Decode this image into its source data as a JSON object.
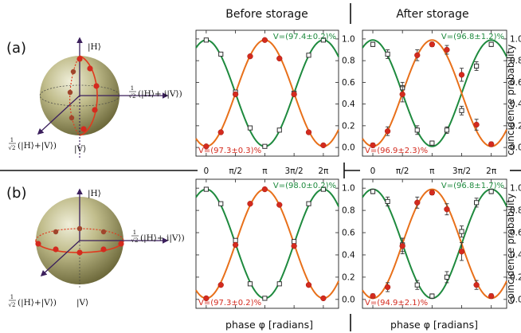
{
  "headers": {
    "left": "Before storage",
    "right": "After storage"
  },
  "xlabel": "phase φ [radians]",
  "ylabel": "coincidence probability",
  "x_ticks": [
    "0",
    "π/2",
    "π",
    "3π/2",
    "2π"
  ],
  "y_ticks": [
    "0.0",
    "0.2",
    "0.4",
    "0.6",
    "0.8",
    "1.0"
  ],
  "colors": {
    "green": "#1e8a3e",
    "orange": "#e8701a",
    "red": "#d42a1e"
  },
  "rows": [
    {
      "label": "(a)",
      "bloch": {
        "top": "|H⟩",
        "bottom": "|V⟩",
        "eq_front_frac": "1",
        "eq_front_den": "√2",
        "eq_front_rest": "(|H⟩+|V⟩)",
        "eq_side_frac": "1",
        "eq_side_den": "√2",
        "eq_side_rest": "(|H⟩+ i|V⟩)"
      }
    },
    {
      "label": "(b)",
      "bloch": {
        "top": "|H⟩",
        "bottom": "|V⟩",
        "eq_front_frac": "1",
        "eq_front_den": "√2",
        "eq_front_rest": "(|H⟩+|V⟩)",
        "eq_side_frac": "1",
        "eq_side_den": "√2",
        "eq_side_rest": "(|H⟩+ i|V⟩)"
      }
    }
  ],
  "chart_data": [
    {
      "id": "a-before",
      "type": "scatter",
      "title": "",
      "xlabel": "",
      "ylabel": "coincidence probability",
      "xlim": [
        -0.55,
        7.1
      ],
      "ylim": [
        -0.08,
        1.08
      ],
      "grid": false,
      "series": [
        {
          "color": "green",
          "marker": "open-square",
          "curve": "cos2",
          "x": [
            0,
            0.785,
            1.571,
            2.356,
            3.142,
            3.927,
            4.712,
            5.498,
            6.283
          ],
          "y": [
            0.99,
            0.86,
            0.51,
            0.18,
            0.01,
            0.16,
            0.5,
            0.85,
            0.99
          ],
          "err": [
            0,
            0,
            0,
            0,
            0,
            0,
            0,
            0,
            0
          ]
        },
        {
          "color": "red",
          "marker": "filled-circle",
          "curve": "sin2",
          "x": [
            0,
            0.785,
            1.571,
            2.356,
            3.142,
            3.927,
            4.712,
            5.498,
            6.283
          ],
          "y": [
            0.01,
            0.14,
            0.49,
            0.84,
            0.99,
            0.82,
            0.49,
            0.14,
            0.02
          ],
          "err": [
            0,
            0,
            0,
            0,
            0,
            0,
            0,
            0,
            0
          ]
        }
      ],
      "annotations": [
        {
          "text": "V=(97.4±0.2)%",
          "color": "green"
        },
        {
          "text": "V=(97.3±0.3)%",
          "color": "red"
        }
      ]
    },
    {
      "id": "a-after",
      "type": "scatter",
      "title": "",
      "xlabel": "",
      "ylabel": "coincidence probability",
      "xlim": [
        -0.55,
        7.1
      ],
      "ylim": [
        -0.08,
        1.08
      ],
      "grid": false,
      "series": [
        {
          "color": "green",
          "marker": "open-square",
          "curve": "cos2",
          "x": [
            0,
            0.785,
            1.571,
            2.356,
            3.142,
            3.927,
            4.712,
            5.498,
            6.283
          ],
          "y": [
            0.95,
            0.86,
            0.55,
            0.16,
            0.04,
            0.16,
            0.34,
            0.75,
            0.95
          ],
          "err": [
            0.02,
            0.04,
            0.05,
            0.04,
            0.02,
            0.03,
            0.04,
            0.04,
            0.02
          ]
        },
        {
          "color": "red",
          "marker": "filled-circle",
          "curve": "sin2",
          "x": [
            0,
            0.785,
            1.571,
            2.356,
            3.142,
            3.927,
            4.712,
            5.498,
            6.283
          ],
          "y": [
            0.02,
            0.15,
            0.49,
            0.85,
            0.95,
            0.9,
            0.67,
            0.21,
            0.03
          ],
          "err": [
            0.02,
            0.04,
            0.07,
            0.05,
            0.02,
            0.04,
            0.06,
            0.05,
            0.02
          ]
        }
      ],
      "annotations": [
        {
          "text": "V=(96.8±1.2)%",
          "color": "green"
        },
        {
          "text": "V=(96.9±2.3)%",
          "color": "red"
        }
      ]
    },
    {
      "id": "b-before",
      "type": "scatter",
      "title": "",
      "xlabel": "phase φ [radians]",
      "ylabel": "coincidence probability",
      "xlim": [
        -0.55,
        7.1
      ],
      "ylim": [
        -0.08,
        1.08
      ],
      "grid": false,
      "series": [
        {
          "color": "green",
          "marker": "open-square",
          "curve": "cos2",
          "x": [
            0,
            0.785,
            1.571,
            2.356,
            3.142,
            3.927,
            4.712,
            5.498,
            6.283
          ],
          "y": [
            0.99,
            0.86,
            0.53,
            0.14,
            0.01,
            0.14,
            0.52,
            0.86,
            0.99
          ],
          "err": [
            0,
            0,
            0,
            0,
            0,
            0,
            0,
            0,
            0
          ]
        },
        {
          "color": "red",
          "marker": "filled-circle",
          "curve": "sin2",
          "x": [
            0,
            0.785,
            1.571,
            2.356,
            3.142,
            3.927,
            4.712,
            5.498,
            6.283
          ],
          "y": [
            0.01,
            0.13,
            0.49,
            0.86,
            0.99,
            0.85,
            0.48,
            0.13,
            0.01
          ],
          "err": [
            0,
            0,
            0,
            0,
            0,
            0,
            0,
            0,
            0
          ]
        }
      ],
      "annotations": [
        {
          "text": "V=(98.0±0.2)%",
          "color": "green"
        },
        {
          "text": "V=(97.3±0.2)%",
          "color": "red"
        }
      ]
    },
    {
      "id": "b-after",
      "type": "scatter",
      "title": "",
      "xlabel": "phase φ [radians]",
      "ylabel": "coincidence probability",
      "xlim": [
        -0.55,
        7.1
      ],
      "ylim": [
        -0.08,
        1.08
      ],
      "grid": false,
      "series": [
        {
          "color": "green",
          "marker": "open-square",
          "curve": "cos2",
          "x": [
            0,
            0.785,
            1.571,
            2.356,
            3.142,
            3.927,
            4.712,
            5.498,
            6.283
          ],
          "y": [
            0.97,
            0.88,
            0.49,
            0.13,
            0.03,
            0.2,
            0.61,
            0.87,
            0.97
          ],
          "err": [
            0.02,
            0.04,
            0.06,
            0.04,
            0.02,
            0.05,
            0.05,
            0.04,
            0.02
          ]
        },
        {
          "color": "red",
          "marker": "filled-circle",
          "curve": "sin2",
          "x": [
            0,
            0.785,
            1.571,
            2.356,
            3.142,
            3.927,
            4.712,
            5.498,
            6.283
          ],
          "y": [
            0.03,
            0.11,
            0.48,
            0.87,
            0.96,
            0.81,
            0.43,
            0.13,
            0.03
          ],
          "err": [
            0.02,
            0.04,
            0.07,
            0.05,
            0.02,
            0.05,
            0.08,
            0.04,
            0.02
          ]
        }
      ],
      "annotations": [
        {
          "text": "V=(96.8±1.7)%",
          "color": "green"
        },
        {
          "text": "V=(94.9±2.1)%",
          "color": "red"
        }
      ]
    }
  ]
}
